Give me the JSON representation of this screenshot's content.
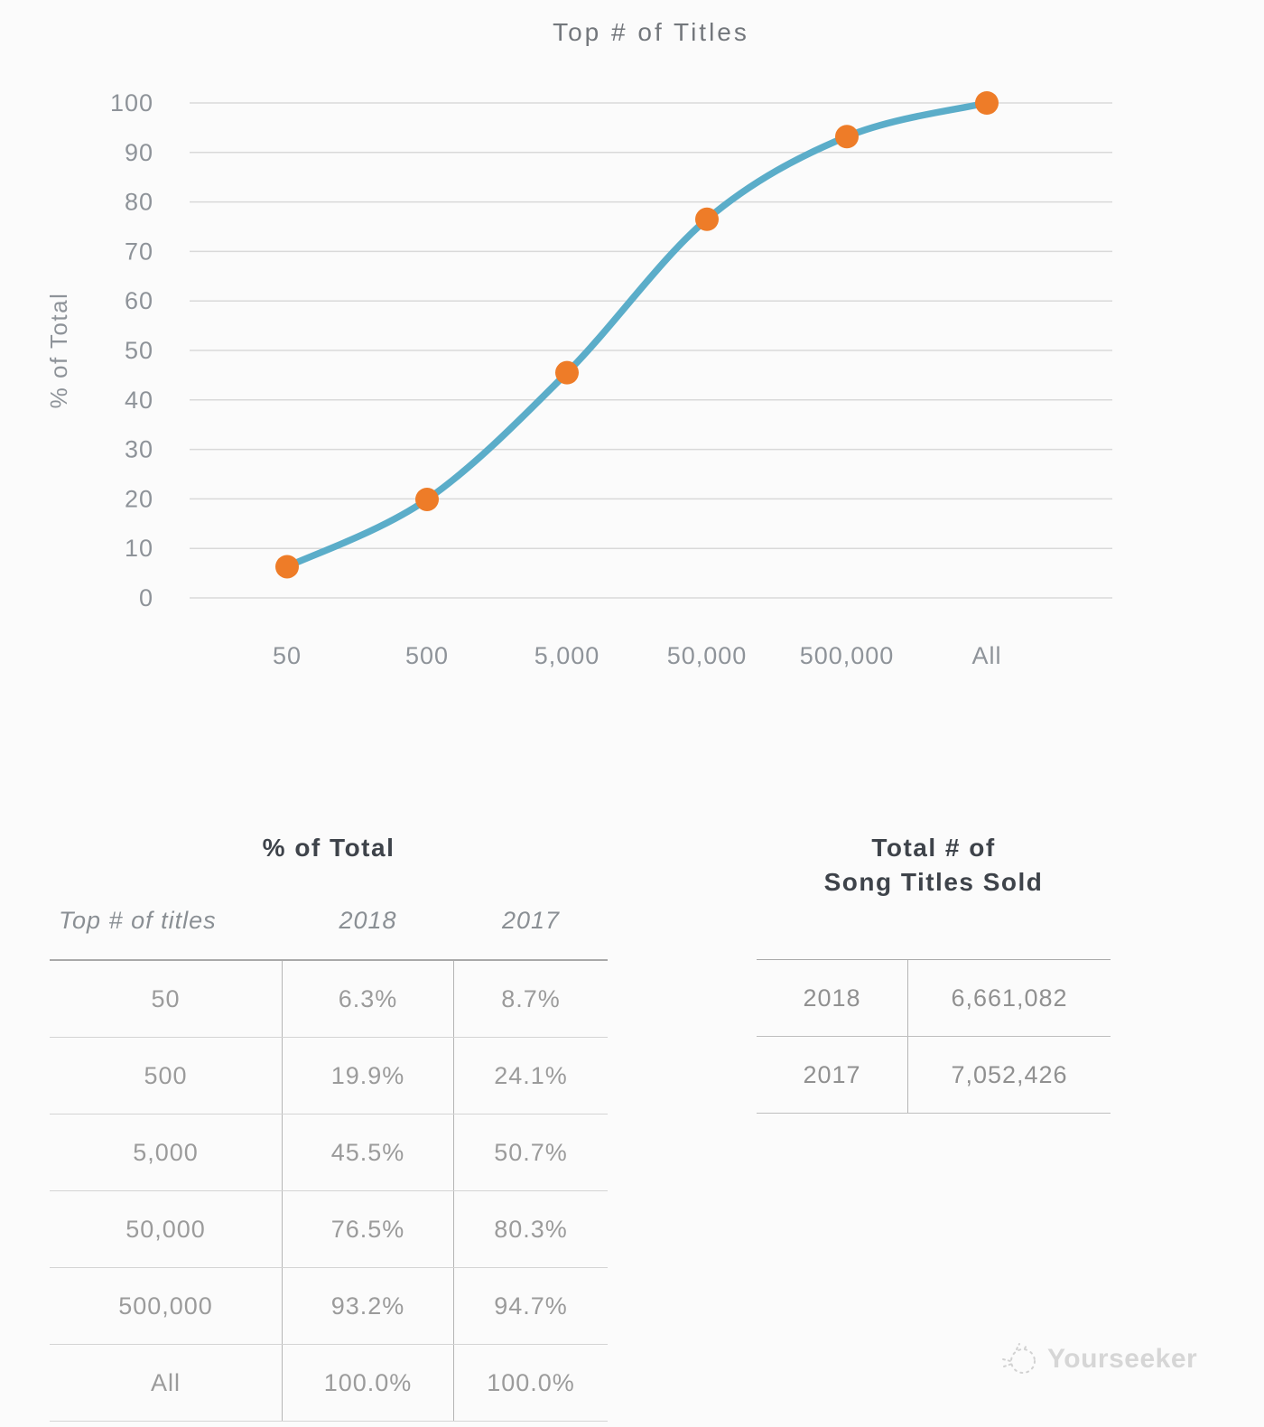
{
  "chart_data": {
    "type": "line",
    "title": "Top # of Titles",
    "categories": [
      "50",
      "500",
      "5,000",
      "50,000",
      "500,000",
      "All"
    ],
    "series": [
      {
        "name": "2018",
        "values": [
          6.3,
          19.9,
          45.5,
          76.5,
          93.2,
          100.0
        ]
      }
    ],
    "xlabel": "",
    "ylabel": "% of Total",
    "ylim": [
      0,
      100
    ],
    "ytick_step": 10,
    "yticks": [
      "0",
      "10",
      "20",
      "30",
      "40",
      "50",
      "60",
      "70",
      "80",
      "90",
      "100"
    ],
    "grid": true,
    "legend": false,
    "colors": {
      "line": "#5badc9",
      "marker": "#ee7c28",
      "gridline": "#d9d9d9",
      "axis_text": "#8e9399"
    }
  },
  "tables": {
    "pct": {
      "title": "% of Total",
      "columns": [
        "Top # of titles",
        "2018",
        "2017"
      ],
      "rows": [
        [
          "50",
          "6.3%",
          "8.7%"
        ],
        [
          "500",
          "19.9%",
          "24.1%"
        ],
        [
          "5,000",
          "45.5%",
          "50.7%"
        ],
        [
          "50,000",
          "76.5%",
          "80.3%"
        ],
        [
          "500,000",
          "93.2%",
          "94.7%"
        ],
        [
          "All",
          "100.0%",
          "100.0%"
        ]
      ]
    },
    "totals": {
      "title_line1": "Total # of",
      "title_line2": "Song Titles Sold",
      "rows": [
        [
          "2018",
          "6,661,082"
        ],
        [
          "2017",
          "7,052,426"
        ]
      ]
    }
  },
  "watermark": {
    "label": "Yourseeker"
  }
}
